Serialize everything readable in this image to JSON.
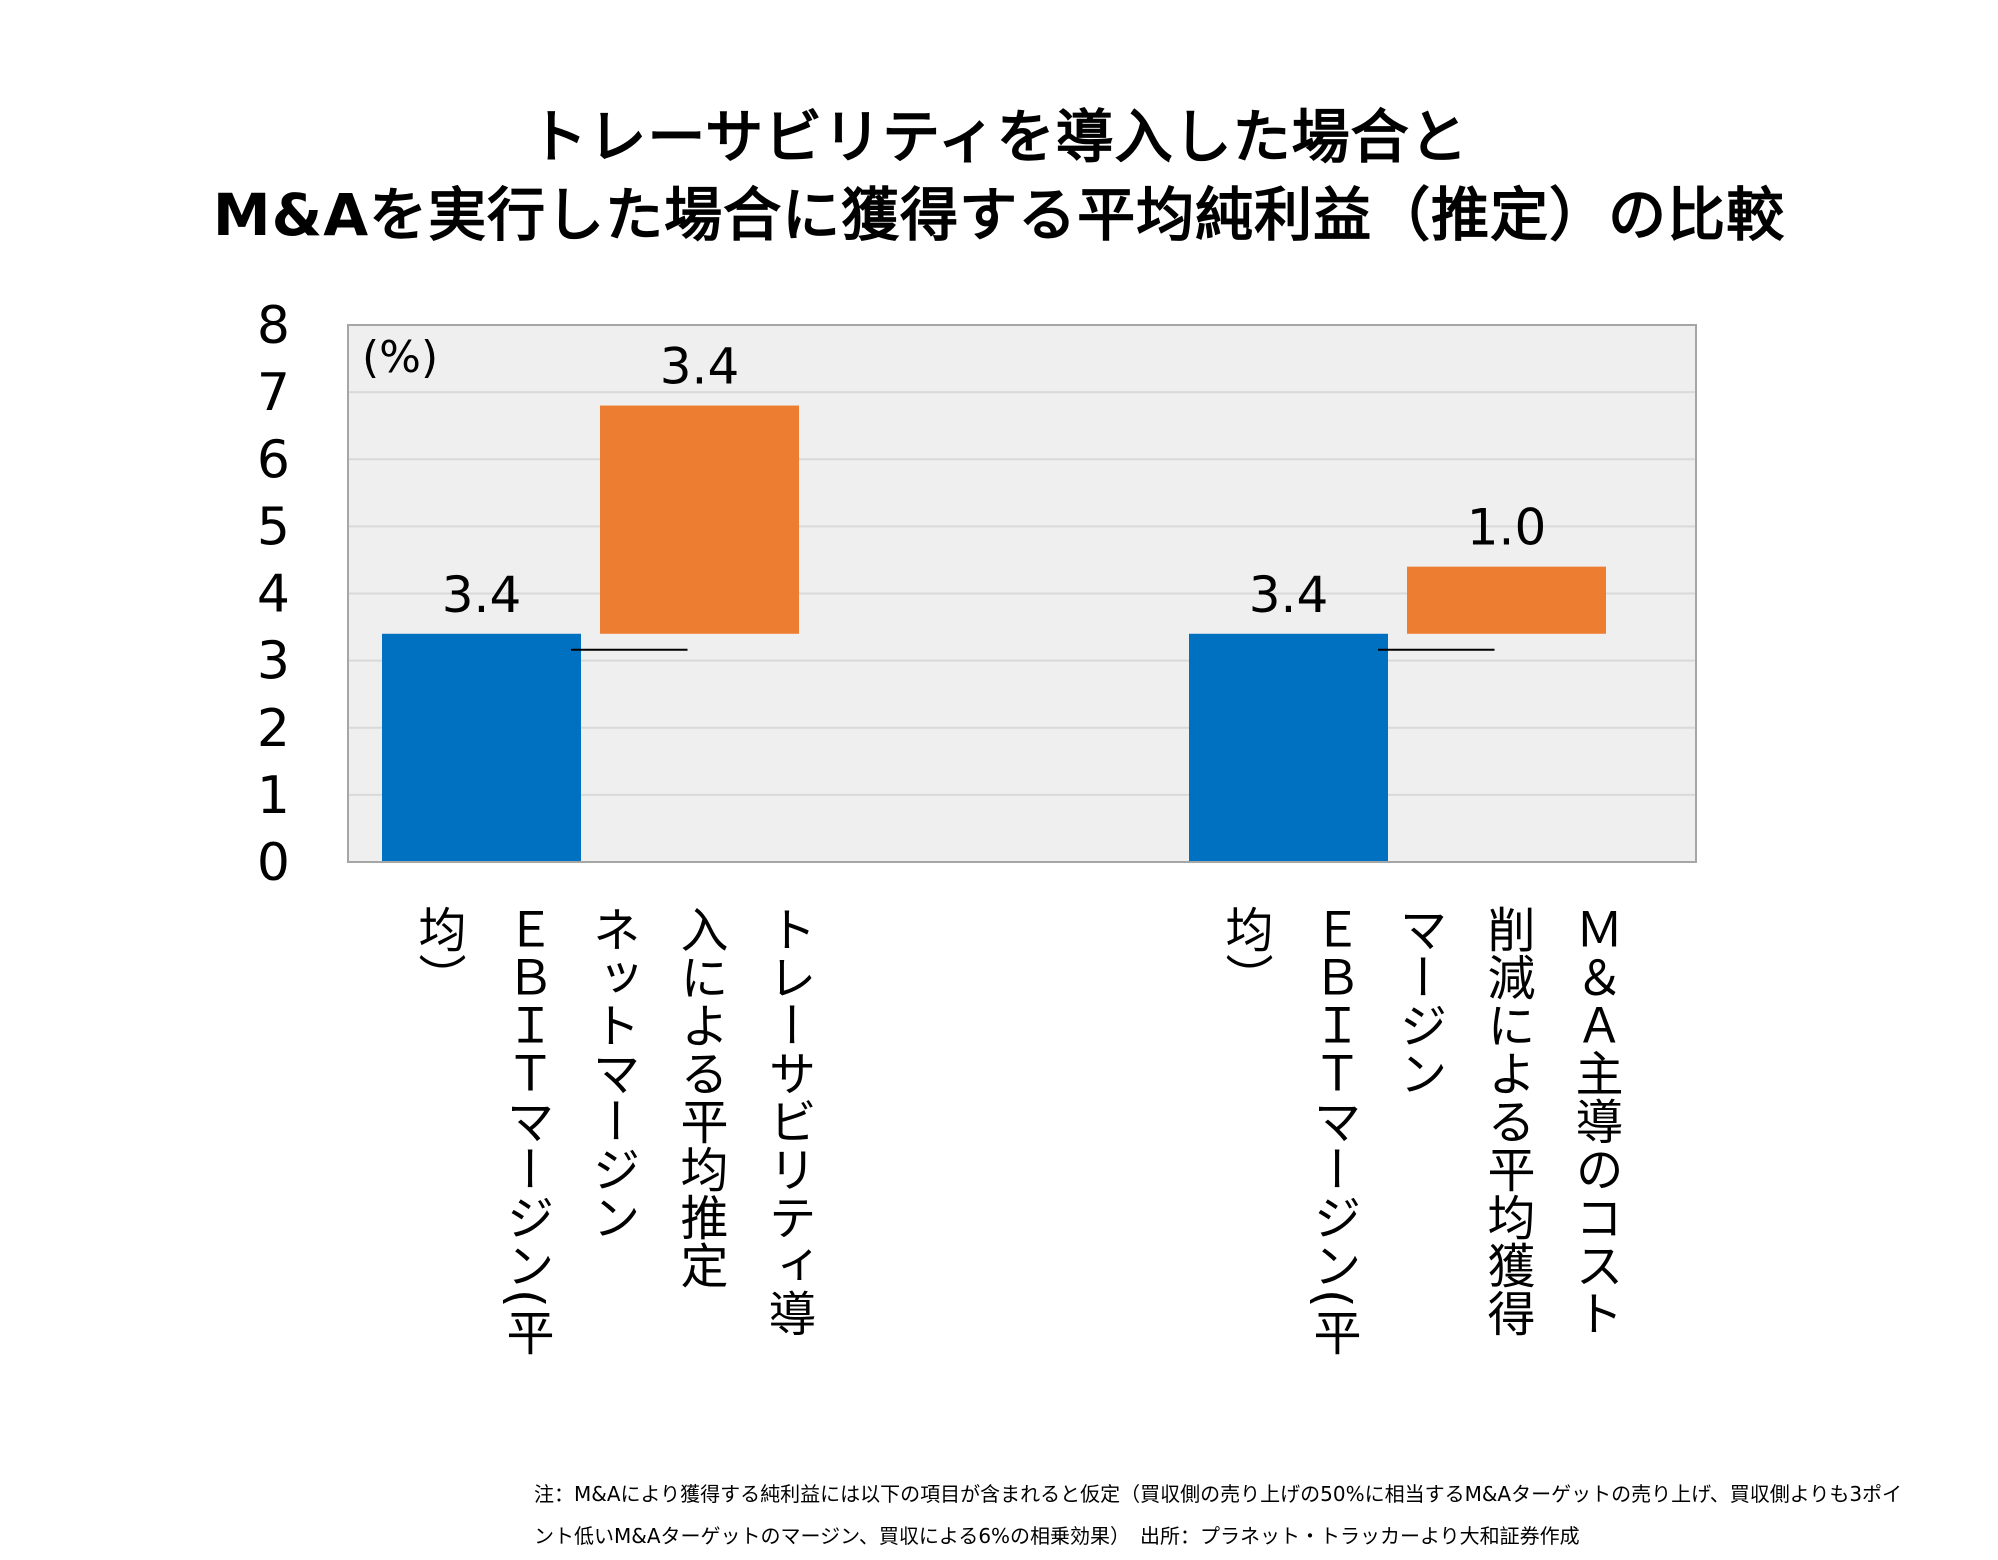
{
  "title_line1": "トレーサビリティを導入した場合と",
  "title_line2": "M&Aを実行した場合に獲得する平均純利益（推定）の比較",
  "unit_label": "(%)",
  "note_line1": "注：M&Aにより獲得する純利益には以下の項目が含まれると仮定（買収側の売り上げの50%に相当するM&Aターゲットの売り上げ、買収側よりも3ポイ",
  "note_line2": "ント低いM&Aターゲットのマージン、買収による6%の相乗効果）　出所：プラネット・トラッカーより大和証券作成",
  "colors": {
    "blue": "#0070c0",
    "orange": "#ed7d31",
    "plot_bg": "#efefef",
    "grid": "#d9d9d9",
    "frame": "#a6a6a6"
  },
  "chart_data": {
    "type": "bar",
    "subtype": "waterfall",
    "ylim": [
      0,
      8
    ],
    "yticks": [
      "0",
      "1",
      "2",
      "3",
      "4",
      "5",
      "6",
      "7",
      "8"
    ],
    "grid": true,
    "groups": [
      {
        "bars": [
          {
            "category_lines": [
              "ＥＢＩＴマージン(平",
              "均）"
            ],
            "base": 0,
            "value": 3.4,
            "label": "3.4",
            "color": "#0070c0"
          },
          {
            "category_lines": [
              "トレーサビリティ導",
              "入による平均推定",
              "ネットマージン"
            ],
            "base": 3.4,
            "value": 3.4,
            "label": "3.4",
            "color": "#ed7d31"
          }
        ]
      },
      {
        "bars": [
          {
            "category_lines": [
              "ＥＢＩＴマージン(平",
              "均）"
            ],
            "base": 0,
            "value": 3.4,
            "label": "3.4",
            "color": "#0070c0"
          },
          {
            "category_lines": [
              "Ｍ＆Ａ主導のコスト",
              "削減による平均獲得",
              "マージン"
            ],
            "base": 3.4,
            "value": 1.0,
            "label": "1.0",
            "color": "#ed7d31"
          }
        ]
      }
    ]
  }
}
